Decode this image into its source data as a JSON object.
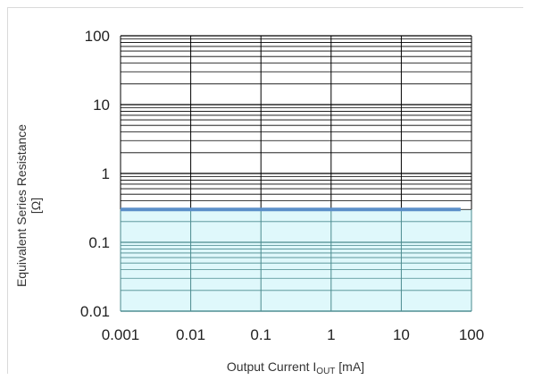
{
  "chart_data": {
    "type": "area",
    "x_scale": "log",
    "y_scale": "log",
    "xlim": [
      0.001,
      100
    ],
    "ylim": [
      0.01,
      100
    ],
    "x_ticks": [
      "0.001",
      "0.01",
      "0.1",
      "1",
      "10",
      "100"
    ],
    "y_ticks": [
      "100",
      "10",
      "1",
      "0.1",
      "0.01"
    ],
    "xlabel": {
      "prefix": "Output  Current I",
      "subscript": "OUT",
      "suffix": " [mA]"
    },
    "ylabel_lines": [
      "Equivalent  Series Resistance",
      "[Ω]"
    ],
    "series": [
      {
        "x": [
          0.001,
          70
        ],
        "y": [
          0.3,
          0.3
        ],
        "fill_to": 0.01,
        "line_color": "#5b8fc9",
        "fill_color": "#dff8fb"
      }
    ],
    "grid": true,
    "colors": {
      "grid": "#000000",
      "line": "#5b8fc9",
      "fill": "#dff8fb"
    }
  }
}
